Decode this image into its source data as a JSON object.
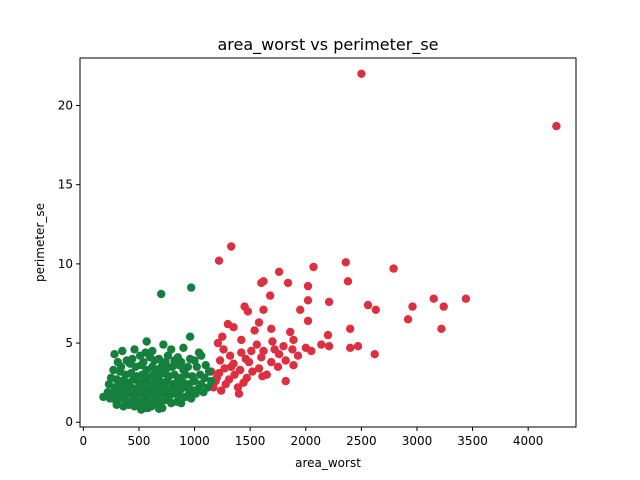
{
  "chart_data": {
    "type": "scatter",
    "title": "area_worst vs perimeter_se",
    "xlabel": "area_worst",
    "ylabel": "perimeter_se",
    "xlim": [
      -30,
      4430
    ],
    "ylim": [
      -0.3,
      23.0
    ],
    "xticks": [
      0,
      500,
      1000,
      1500,
      2000,
      2500,
      3000,
      3500,
      4000
    ],
    "yticks": [
      0,
      5,
      10,
      15,
      20
    ],
    "grid": false,
    "colors": {
      "benign": "#15803d",
      "malignant": "#dc2f3f"
    },
    "series": [
      {
        "key": "malignant",
        "color": "#dc2f3f",
        "points": [
          [
            2500,
            22.0
          ],
          [
            4254,
            18.7
          ],
          [
            1330,
            11.1
          ],
          [
            1220,
            10.2
          ],
          [
            2360,
            10.1
          ],
          [
            2070,
            9.8
          ],
          [
            2790,
            9.7
          ],
          [
            1760,
            9.5
          ],
          [
            2380,
            8.9
          ],
          [
            1600,
            8.8
          ],
          [
            1620,
            8.9
          ],
          [
            1840,
            8.8
          ],
          [
            2020,
            8.6
          ],
          [
            1680,
            8.0
          ],
          [
            2020,
            7.7
          ],
          [
            2210,
            7.6
          ],
          [
            2560,
            7.4
          ],
          [
            1450,
            7.3
          ],
          [
            1480,
            7.0
          ],
          [
            1620,
            7.1
          ],
          [
            1950,
            7.1
          ],
          [
            2630,
            7.1
          ],
          [
            2960,
            7.3
          ],
          [
            3150,
            7.8
          ],
          [
            3440,
            7.8
          ],
          [
            3240,
            7.3
          ],
          [
            2920,
            6.5
          ],
          [
            2020,
            6.4
          ],
          [
            1580,
            6.3
          ],
          [
            1300,
            6.2
          ],
          [
            1350,
            6.0
          ],
          [
            1540,
            5.8
          ],
          [
            1690,
            5.9
          ],
          [
            1860,
            5.7
          ],
          [
            2400,
            5.9
          ],
          [
            3220,
            5.9
          ],
          [
            2200,
            5.5
          ],
          [
            1250,
            5.4
          ],
          [
            1420,
            5.2
          ],
          [
            1700,
            5.1
          ],
          [
            1890,
            5.2
          ],
          [
            1210,
            5.0
          ],
          [
            1560,
            4.9
          ],
          [
            1800,
            4.8
          ],
          [
            2000,
            4.7
          ],
          [
            2140,
            4.9
          ],
          [
            2210,
            4.8
          ],
          [
            2400,
            4.7
          ],
          [
            2470,
            4.8
          ],
          [
            2620,
            4.3
          ],
          [
            1260,
            4.6
          ],
          [
            1420,
            4.4
          ],
          [
            1510,
            4.5
          ],
          [
            1620,
            4.5
          ],
          [
            1720,
            4.6
          ],
          [
            1880,
            4.6
          ],
          [
            2050,
            4.5
          ],
          [
            1320,
            4.2
          ],
          [
            1460,
            4.0
          ],
          [
            1600,
            4.1
          ],
          [
            1760,
            4.3
          ],
          [
            1930,
            4.2
          ],
          [
            1230,
            3.9
          ],
          [
            1350,
            3.7
          ],
          [
            1490,
            3.8
          ],
          [
            1690,
            3.8
          ],
          [
            1820,
            3.9
          ],
          [
            1270,
            3.4
          ],
          [
            1410,
            3.3
          ],
          [
            1580,
            3.4
          ],
          [
            1750,
            3.5
          ],
          [
            1890,
            3.6
          ],
          [
            1220,
            3.1
          ],
          [
            1360,
            3.0
          ],
          [
            1520,
            3.2
          ],
          [
            1650,
            3.0
          ],
          [
            1200,
            2.8
          ],
          [
            1310,
            2.7
          ],
          [
            1470,
            2.8
          ],
          [
            1610,
            2.9
          ],
          [
            1280,
            2.4
          ],
          [
            1440,
            2.5
          ],
          [
            1820,
            2.6
          ],
          [
            1390,
            2.2
          ],
          [
            1170,
            2.2
          ],
          [
            1240,
            2.0
          ],
          [
            1400,
            1.8
          ],
          [
            1150,
            3.2
          ],
          [
            1190,
            2.6
          ],
          [
            1330,
            3.5
          ]
        ]
      },
      {
        "key": "benign",
        "color": "#15803d",
        "points": [
          [
            700,
            8.1
          ],
          [
            970,
            8.5
          ],
          [
            570,
            5.1
          ],
          [
            960,
            5.4
          ],
          [
            720,
            4.9
          ],
          [
            790,
            4.6
          ],
          [
            1060,
            4.2
          ],
          [
            850,
            4.1
          ],
          [
            280,
            4.3
          ],
          [
            510,
            4.2
          ],
          [
            640,
            3.9
          ],
          [
            350,
            4.5
          ],
          [
            440,
            4.0
          ],
          [
            540,
            3.8
          ],
          [
            600,
            4.1
          ],
          [
            680,
            4.0
          ],
          [
            760,
            4.2
          ],
          [
            820,
            3.9
          ],
          [
            880,
            3.8
          ],
          [
            960,
            4.0
          ],
          [
            1000,
            3.9
          ],
          [
            310,
            3.8
          ],
          [
            420,
            3.7
          ],
          [
            470,
            3.5
          ],
          [
            520,
            3.6
          ],
          [
            570,
            3.3
          ],
          [
            620,
            3.5
          ],
          [
            660,
            3.3
          ],
          [
            710,
            3.6
          ],
          [
            750,
            3.4
          ],
          [
            800,
            3.5
          ],
          [
            860,
            3.6
          ],
          [
            900,
            3.3
          ],
          [
            940,
            3.5
          ],
          [
            1020,
            3.5
          ],
          [
            1100,
            3.6
          ],
          [
            1130,
            3.2
          ],
          [
            270,
            3.3
          ],
          [
            330,
            3.2
          ],
          [
            380,
            3.0
          ],
          [
            430,
            3.1
          ],
          [
            480,
            2.9
          ],
          [
            530,
            3.0
          ],
          [
            580,
            2.8
          ],
          [
            630,
            3.0
          ],
          [
            680,
            2.9
          ],
          [
            730,
            3.1
          ],
          [
            770,
            2.9
          ],
          [
            820,
            3.0
          ],
          [
            870,
            2.8
          ],
          [
            920,
            3.0
          ],
          [
            980,
            2.9
          ],
          [
            1050,
            3.0
          ],
          [
            1090,
            2.8
          ],
          [
            250,
            2.8
          ],
          [
            300,
            2.7
          ],
          [
            350,
            2.6
          ],
          [
            400,
            2.5
          ],
          [
            450,
            2.7
          ],
          [
            500,
            2.5
          ],
          [
            550,
            2.6
          ],
          [
            600,
            2.4
          ],
          [
            650,
            2.6
          ],
          [
            700,
            2.5
          ],
          [
            750,
            2.6
          ],
          [
            800,
            2.4
          ],
          [
            850,
            2.6
          ],
          [
            900,
            2.5
          ],
          [
            950,
            2.4
          ],
          [
            1000,
            2.6
          ],
          [
            1060,
            2.4
          ],
          [
            230,
            2.4
          ],
          [
            280,
            2.2
          ],
          [
            330,
            2.3
          ],
          [
            380,
            2.1
          ],
          [
            430,
            2.2
          ],
          [
            480,
            2.1
          ],
          [
            530,
            2.2
          ],
          [
            580,
            2.0
          ],
          [
            630,
            2.2
          ],
          [
            680,
            2.1
          ],
          [
            730,
            2.2
          ],
          [
            780,
            2.0
          ],
          [
            830,
            2.2
          ],
          [
            880,
            2.1
          ],
          [
            930,
            2.2
          ],
          [
            990,
            2.0
          ],
          [
            1030,
            2.1
          ],
          [
            220,
            1.9
          ],
          [
            270,
            1.8
          ],
          [
            320,
            1.9
          ],
          [
            370,
            1.7
          ],
          [
            420,
            1.8
          ],
          [
            470,
            1.7
          ],
          [
            520,
            1.8
          ],
          [
            570,
            1.6
          ],
          [
            620,
            1.8
          ],
          [
            670,
            1.7
          ],
          [
            720,
            1.8
          ],
          [
            770,
            1.6
          ],
          [
            820,
            1.8
          ],
          [
            870,
            1.7
          ],
          [
            920,
            1.6
          ],
          [
            970,
            1.5
          ],
          [
            180,
            1.6
          ],
          [
            240,
            1.5
          ],
          [
            290,
            1.4
          ],
          [
            340,
            1.5
          ],
          [
            390,
            1.3
          ],
          [
            440,
            1.4
          ],
          [
            490,
            1.3
          ],
          [
            540,
            1.4
          ],
          [
            590,
            1.2
          ],
          [
            640,
            1.4
          ],
          [
            690,
            1.3
          ],
          [
            740,
            1.4
          ],
          [
            790,
            1.2
          ],
          [
            840,
            1.3
          ],
          [
            300,
            1.1
          ],
          [
            360,
            1.0
          ],
          [
            410,
            1.1
          ],
          [
            460,
            1.0
          ],
          [
            510,
            1.2
          ],
          [
            560,
            0.9
          ],
          [
            610,
            1.0
          ],
          [
            660,
            1.1
          ],
          [
            710,
            0.9
          ],
          [
            520,
            0.8
          ],
          [
            580,
            0.9
          ],
          [
            680,
            0.85
          ],
          [
            880,
            1.2
          ],
          [
            950,
            1.8
          ],
          [
            1010,
            1.8
          ],
          [
            1120,
            2.2
          ],
          [
            1150,
            2.6
          ],
          [
            1080,
            1.9
          ],
          [
            460,
            4.6
          ],
          [
            560,
            4.4
          ],
          [
            620,
            4.5
          ],
          [
            900,
            4.7
          ],
          [
            390,
            3.9
          ],
          [
            740,
            3.8
          ],
          [
            690,
            3.4
          ],
          [
            340,
            3.5
          ],
          [
            1040,
            4.4
          ]
        ]
      }
    ]
  }
}
